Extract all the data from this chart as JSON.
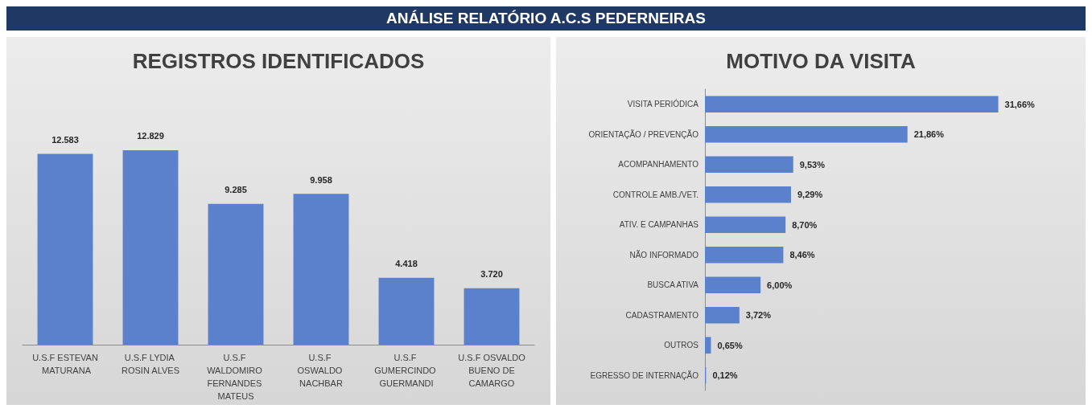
{
  "chart_data": [
    {
      "type": "bar",
      "title": "REGISTROS IDENTIFICADOS",
      "annotations": [
        "ANÁLISE RELATÓRIO A.C.S PEDERNEIRAS"
      ],
      "categories": [
        "U.S.F ESTEVAN MATURANA",
        "U.S.F LYDIA ROSIN ALVES",
        "U.S.F WALDOMIRO FERNANDES MATEUS",
        "U.S.F OSWALDO NACHBAR",
        "U.S.F GUMERCINDO GUERMANDI",
        "U.S.F OSVALDO BUENO DE CAMARGO"
      ],
      "values": [
        12583,
        12829,
        9285,
        9958,
        4418,
        3720
      ],
      "value_labels": [
        "12.583",
        "12.829",
        "9.285",
        "9.958",
        "4.418",
        "3.720"
      ],
      "color": "#5b80cc"
    },
    {
      "type": "bar",
      "title": "MOTIVO DA VISITA",
      "orientation": "horizontal",
      "categories": [
        "VISITA PERIÓDICA",
        "ORIENTAÇÃO / PREVENÇÃO",
        "ACOMPANHAMENTO",
        "CONTROLE AMB./VET.",
        "ATIV. E CAMPANHAS",
        "NÃO INFORMADO",
        "BUSCA ATIVA",
        "CADASTRAMENTO",
        "OUTROS",
        "EGRESSO DE INTERNAÇÃO"
      ],
      "values": [
        31.66,
        21.86,
        9.53,
        9.29,
        8.7,
        8.46,
        6.0,
        3.72,
        0.65,
        0.12
      ],
      "value_labels": [
        "31,66%",
        "21,86%",
        "9,53%",
        "9,29%",
        "8,70%",
        "8,46%",
        "6,00%",
        "3,72%",
        "0,65%",
        "0,12%"
      ],
      "color": "#5b80cc"
    }
  ]
}
